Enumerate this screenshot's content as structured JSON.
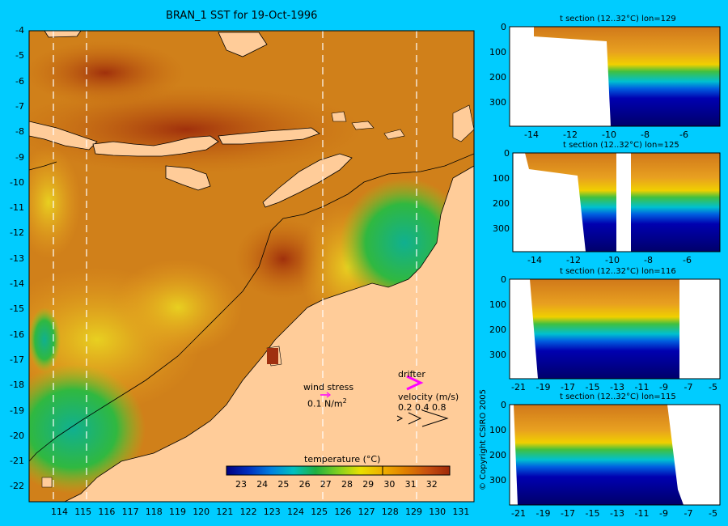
{
  "main_map": {
    "title": "BRAN_1 SST for 19-Oct-1996",
    "lon_ticks": [
      "114",
      "115",
      "116",
      "117",
      "118",
      "119",
      "120",
      "121",
      "122",
      "123",
      "124",
      "125",
      "126",
      "127",
      "128",
      "129",
      "130",
      "131"
    ],
    "lat_ticks": [
      "-4",
      "-5",
      "-6",
      "-7",
      "-8",
      "-9",
      "-10",
      "-11",
      "-12",
      "-13",
      "-14",
      "-15",
      "-16",
      "-17",
      "-18",
      "-19",
      "-20",
      "-21",
      "-22"
    ],
    "section_lines_lon": [
      114.5,
      115.8,
      125.4,
      129.3
    ],
    "wind_stress_label": "wind stress",
    "wind_stress_unit": "0.1 N/m",
    "wind_stress_sup": "2",
    "drifter_label": "drifter",
    "velocity_label": "velocity (m/s)",
    "velocity_values": "0.2 0.4 0.8",
    "colorbar": {
      "label": "temperature (°C)",
      "ticks": [
        "23",
        "24",
        "25",
        "26",
        "27",
        "28",
        "29",
        "30",
        "31",
        "32"
      ]
    },
    "colors": {
      "background": "#00ccff",
      "land": "#ffcc99",
      "warm": "#c86a10",
      "hot": "#a03c0c",
      "mid": "#e8a020",
      "cool": "#22b040",
      "drifter": "#ff00ff"
    }
  },
  "sections": [
    {
      "title": "t section (12..32°C) lon=129",
      "x_ticks": [
        "-14",
        "-12",
        "-10",
        "-8",
        "-6"
      ],
      "y_ticks": [
        "0",
        "100",
        "200",
        "300"
      ]
    },
    {
      "title": "t section (12..32°C) lon=125",
      "x_ticks": [
        "-14",
        "-12",
        "-10",
        "-8",
        "-6"
      ],
      "y_ticks": [
        "0",
        "100",
        "200",
        "300"
      ]
    },
    {
      "title": "t section (12..32°C) lon=116",
      "x_ticks": [
        "-21",
        "-19",
        "-17",
        "-15",
        "-13",
        "-11",
        "-9",
        "-7",
        "-5"
      ],
      "y_ticks": [
        "0",
        "100",
        "200",
        "300"
      ]
    },
    {
      "title": "t section (12..32°C) lon=115",
      "x_ticks": [
        "-21",
        "-19",
        "-17",
        "-15",
        "-13",
        "-11",
        "-9",
        "-7",
        "-5"
      ],
      "y_ticks": [
        "0",
        "100",
        "200",
        "300"
      ]
    }
  ],
  "copyright": "© Copyright CSIRO 2005"
}
